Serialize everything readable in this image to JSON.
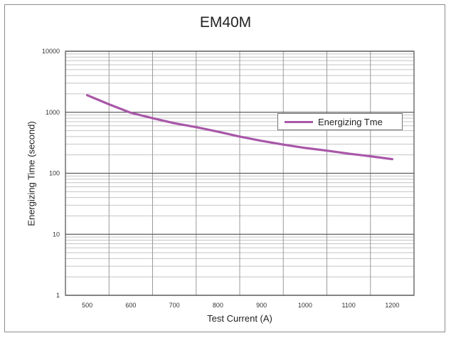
{
  "chart_data": {
    "type": "line",
    "title": "EM40M",
    "xlabel": "Test Current (A)",
    "ylabel": "Energizing Time (second)",
    "x": [
      500,
      550,
      600,
      650,
      700,
      750,
      800,
      850,
      900,
      950,
      1000,
      1050,
      1100,
      1150,
      1200
    ],
    "series": [
      {
        "name": "Energizing Tme",
        "color": "#a857a8",
        "values": [
          1900,
          1350,
          980,
          800,
          660,
          570,
          480,
          400,
          340,
          295,
          260,
          235,
          210,
          190,
          170
        ]
      }
    ],
    "x_ticks": [
      "500",
      "600",
      "700",
      "800",
      "900",
      "1000",
      "1100",
      "1200"
    ],
    "y_ticks": [
      "1",
      "10",
      "100",
      "1000",
      "10000"
    ],
    "ylim": [
      1,
      10000
    ],
    "y_scale": "log",
    "grid": true,
    "legend_position": "right"
  }
}
